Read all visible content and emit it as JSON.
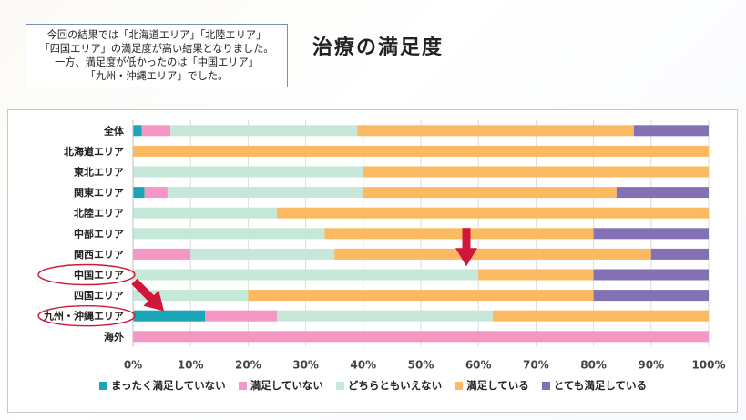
{
  "note": {
    "lines": [
      "今回の結果では「北海道エリア」「北陸エリア」",
      "「四国エリア」の満足度が高い結果となりました。",
      "一方、満足度が低かったのは「中国エリア」",
      "「九州・沖縄エリア」でした。"
    ]
  },
  "page_title": "治療の満足度",
  "chart_data": {
    "type": "bar",
    "orientation": "horizontal",
    "stacked": "percent",
    "title": "",
    "xlabel": "",
    "ylabel": "",
    "xlim": [
      0,
      100
    ],
    "x_ticks": [
      "0%",
      "10%",
      "20%",
      "30%",
      "40%",
      "50%",
      "60%",
      "70%",
      "80%",
      "90%",
      "100%"
    ],
    "categories": [
      "全体",
      "北海道エリア",
      "東北エリア",
      "関東エリア",
      "北陸エリア",
      "中部エリア",
      "関西エリア",
      "中国エリア",
      "四国エリア",
      "九州・沖縄エリア",
      "海外"
    ],
    "series": [
      {
        "name": "まったく満足していない",
        "color": "#1aa6b7",
        "values": [
          1.5,
          0,
          0,
          2,
          0,
          0,
          0,
          0,
          0,
          12.5,
          0
        ]
      },
      {
        "name": "満足していない",
        "color": "#f497c4",
        "values": [
          5,
          0,
          0,
          4,
          0,
          0,
          10,
          0,
          0,
          12.5,
          100
        ]
      },
      {
        "name": "どちらともいえない",
        "color": "#c6e8d8",
        "values": [
          32.5,
          0,
          40,
          34,
          25,
          33.3,
          25,
          60,
          20,
          37.5,
          0
        ]
      },
      {
        "name": "満足している",
        "color": "#fbb962",
        "values": [
          48,
          100,
          60,
          44,
          75,
          46.7,
          55,
          20,
          60,
          37.5,
          0
        ]
      },
      {
        "name": "とても満足している",
        "color": "#8271b5",
        "values": [
          13,
          0,
          0,
          16,
          0,
          20,
          10,
          20,
          20,
          0,
          0
        ]
      }
    ],
    "grid": true,
    "legend_position": "bottom",
    "highlighted_categories": [
      "中国エリア",
      "九州・沖縄エリア"
    ],
    "annotation_color": "#d0173a"
  }
}
